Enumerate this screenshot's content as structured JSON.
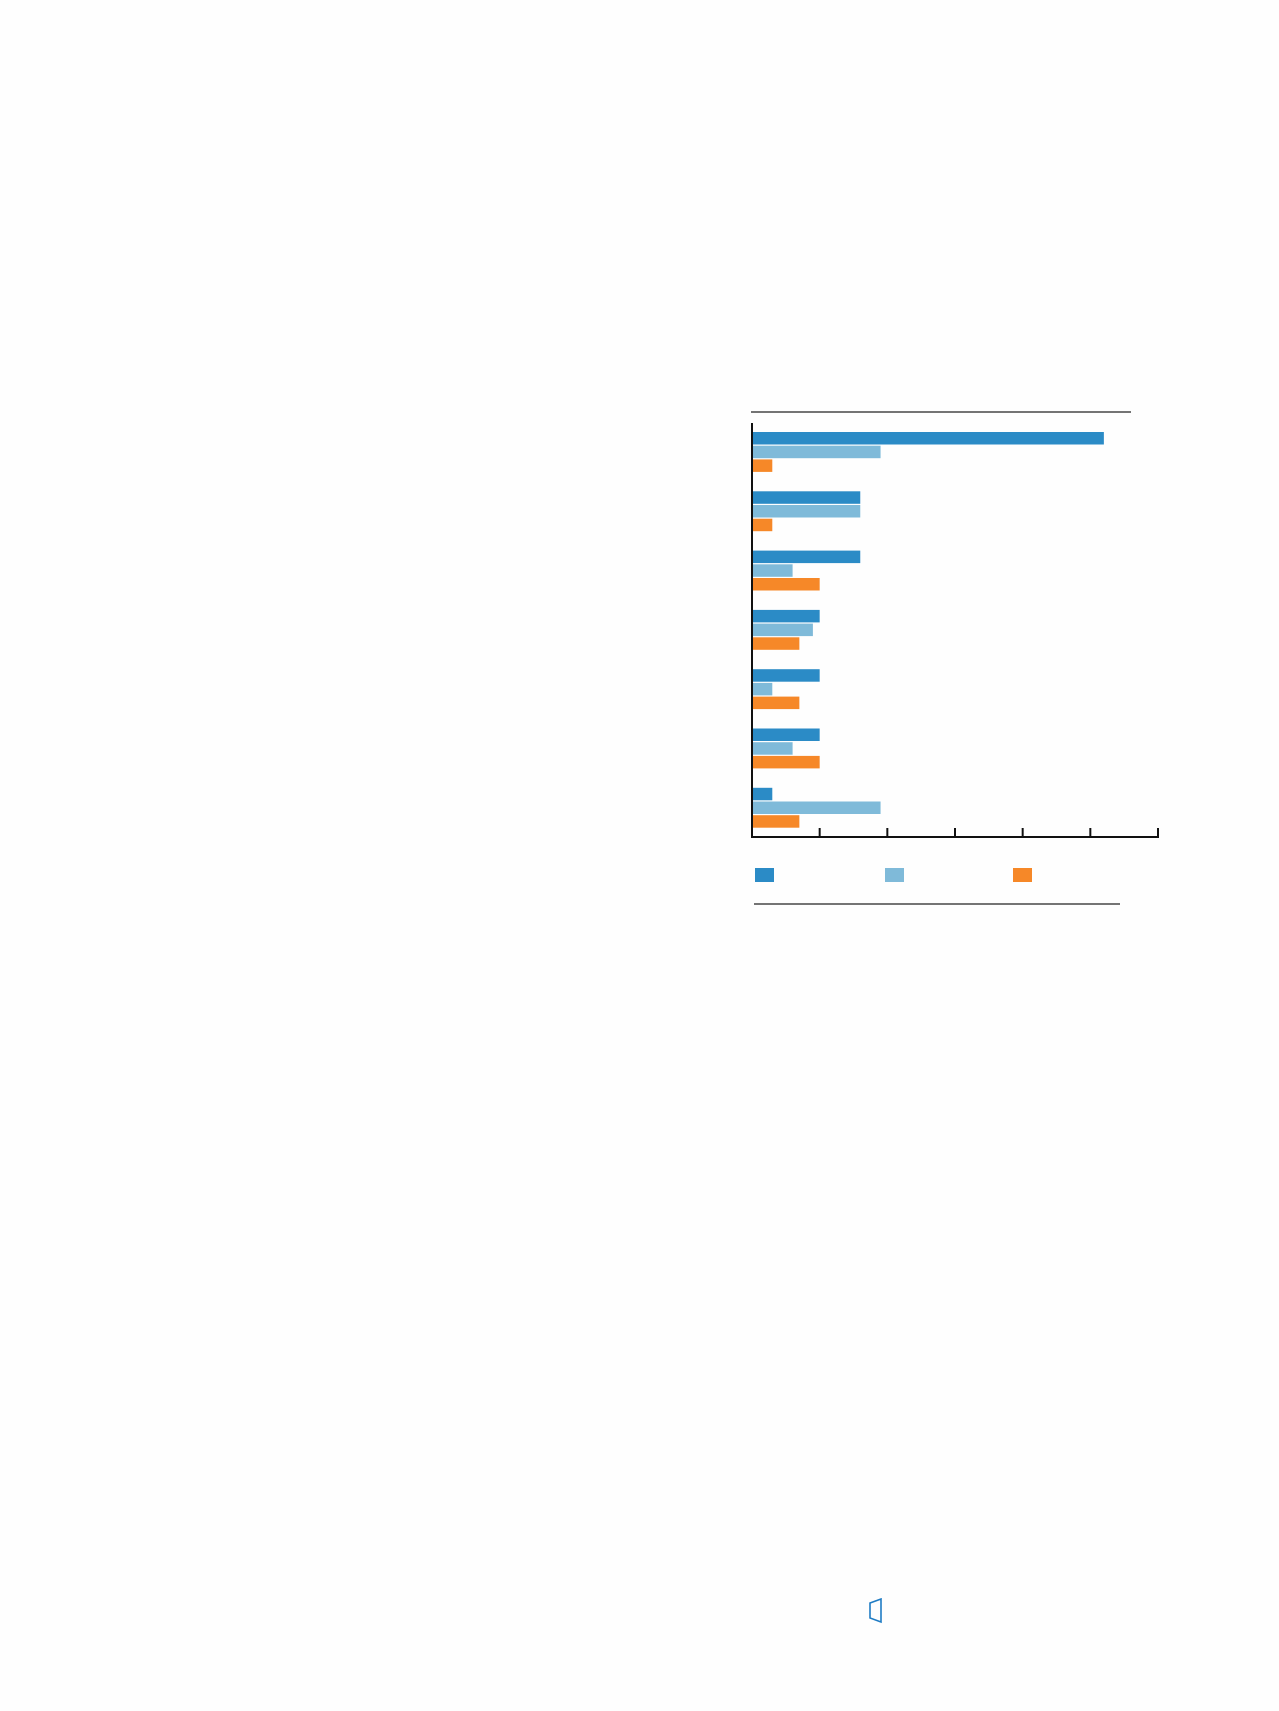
{
  "chart_data": {
    "type": "bar",
    "orientation": "horizontal",
    "title": "",
    "xlabel": "",
    "ylabel": "",
    "xlim": [
      0,
      6
    ],
    "x_ticks": [
      0,
      1,
      2,
      3,
      4,
      5,
      6
    ],
    "grid": false,
    "legend": "bottom",
    "categories": [
      "",
      "",
      "",
      "",
      "",
      "",
      ""
    ],
    "series": [
      {
        "color": "#2b8bc6",
        "values": [
          5.2,
          1.6,
          1.6,
          1.0,
          1.0,
          1.0,
          0.3
        ]
      },
      {
        "color": "#7fbad9",
        "values": [
          1.9,
          1.6,
          0.6,
          0.9,
          0.3,
          0.6,
          1.9
        ]
      },
      {
        "color": "#f68828",
        "values": [
          0.3,
          0.3,
          1.0,
          0.7,
          0.7,
          1.0,
          0.7
        ]
      }
    ]
  },
  "icons": {
    "page": "page-corner-icon",
    "page_color": "#1f7cc4"
  }
}
